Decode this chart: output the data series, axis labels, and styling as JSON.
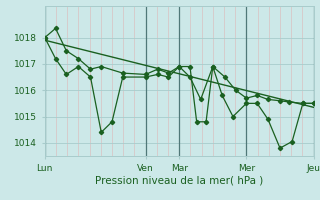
{
  "bg_color": "#cce8e8",
  "grid_color_major": "#a8cccc",
  "grid_color_minor": "#e0b0b0",
  "line_color": "#1a6020",
  "marker_color": "#1a6020",
  "xlabel": "Pression niveau de la mer( hPa )",
  "xlabel_color": "#1a6020",
  "tick_color": "#1a6020",
  "ylim": [
    1013.5,
    1019.2
  ],
  "yticks": [
    1014,
    1015,
    1016,
    1017,
    1018
  ],
  "figsize": [
    3.2,
    2.0
  ],
  "dpi": 100,
  "xtick_labels": [
    "Lun",
    "Ven",
    "Mar",
    "Mer",
    "Jeu"
  ],
  "xtick_positions": [
    0,
    0.375,
    0.5,
    0.75,
    1.0
  ],
  "vline_positions": [
    0.0,
    0.375,
    0.5,
    0.75,
    1.0
  ],
  "line1_t": [
    0.0,
    0.04,
    0.08,
    0.125,
    0.17,
    0.21,
    0.25,
    0.29,
    0.375,
    0.42,
    0.46,
    0.5,
    0.54,
    0.565,
    0.6,
    0.625,
    0.66,
    0.7,
    0.75,
    0.79,
    0.83,
    0.875,
    0.92,
    0.96,
    1.0
  ],
  "line1_y": [
    1018.0,
    1017.2,
    1016.6,
    1016.9,
    1016.5,
    1014.4,
    1014.8,
    1016.5,
    1016.5,
    1016.6,
    1016.5,
    1016.9,
    1016.9,
    1014.8,
    1014.8,
    1016.9,
    1015.8,
    1015.0,
    1015.5,
    1015.5,
    1014.9,
    1013.8,
    1014.05,
    1015.5,
    1015.5
  ],
  "line2_t": [
    0.0,
    0.04,
    0.08,
    0.125,
    0.17,
    0.21,
    0.29,
    0.375,
    0.42,
    0.46,
    0.5,
    0.54,
    0.58,
    0.625,
    0.67,
    0.71,
    0.75,
    0.79,
    0.83,
    0.875,
    0.91,
    0.96,
    1.0
  ],
  "line2_y": [
    1018.0,
    1018.35,
    1017.5,
    1017.2,
    1016.8,
    1016.9,
    1016.65,
    1016.6,
    1016.8,
    1016.65,
    1016.9,
    1016.5,
    1015.65,
    1016.9,
    1016.5,
    1016.0,
    1015.7,
    1015.8,
    1015.65,
    1015.6,
    1015.55,
    1015.5,
    1015.5
  ],
  "trend_t": [
    0.0,
    1.0
  ],
  "trend_y": [
    1017.9,
    1015.35
  ]
}
